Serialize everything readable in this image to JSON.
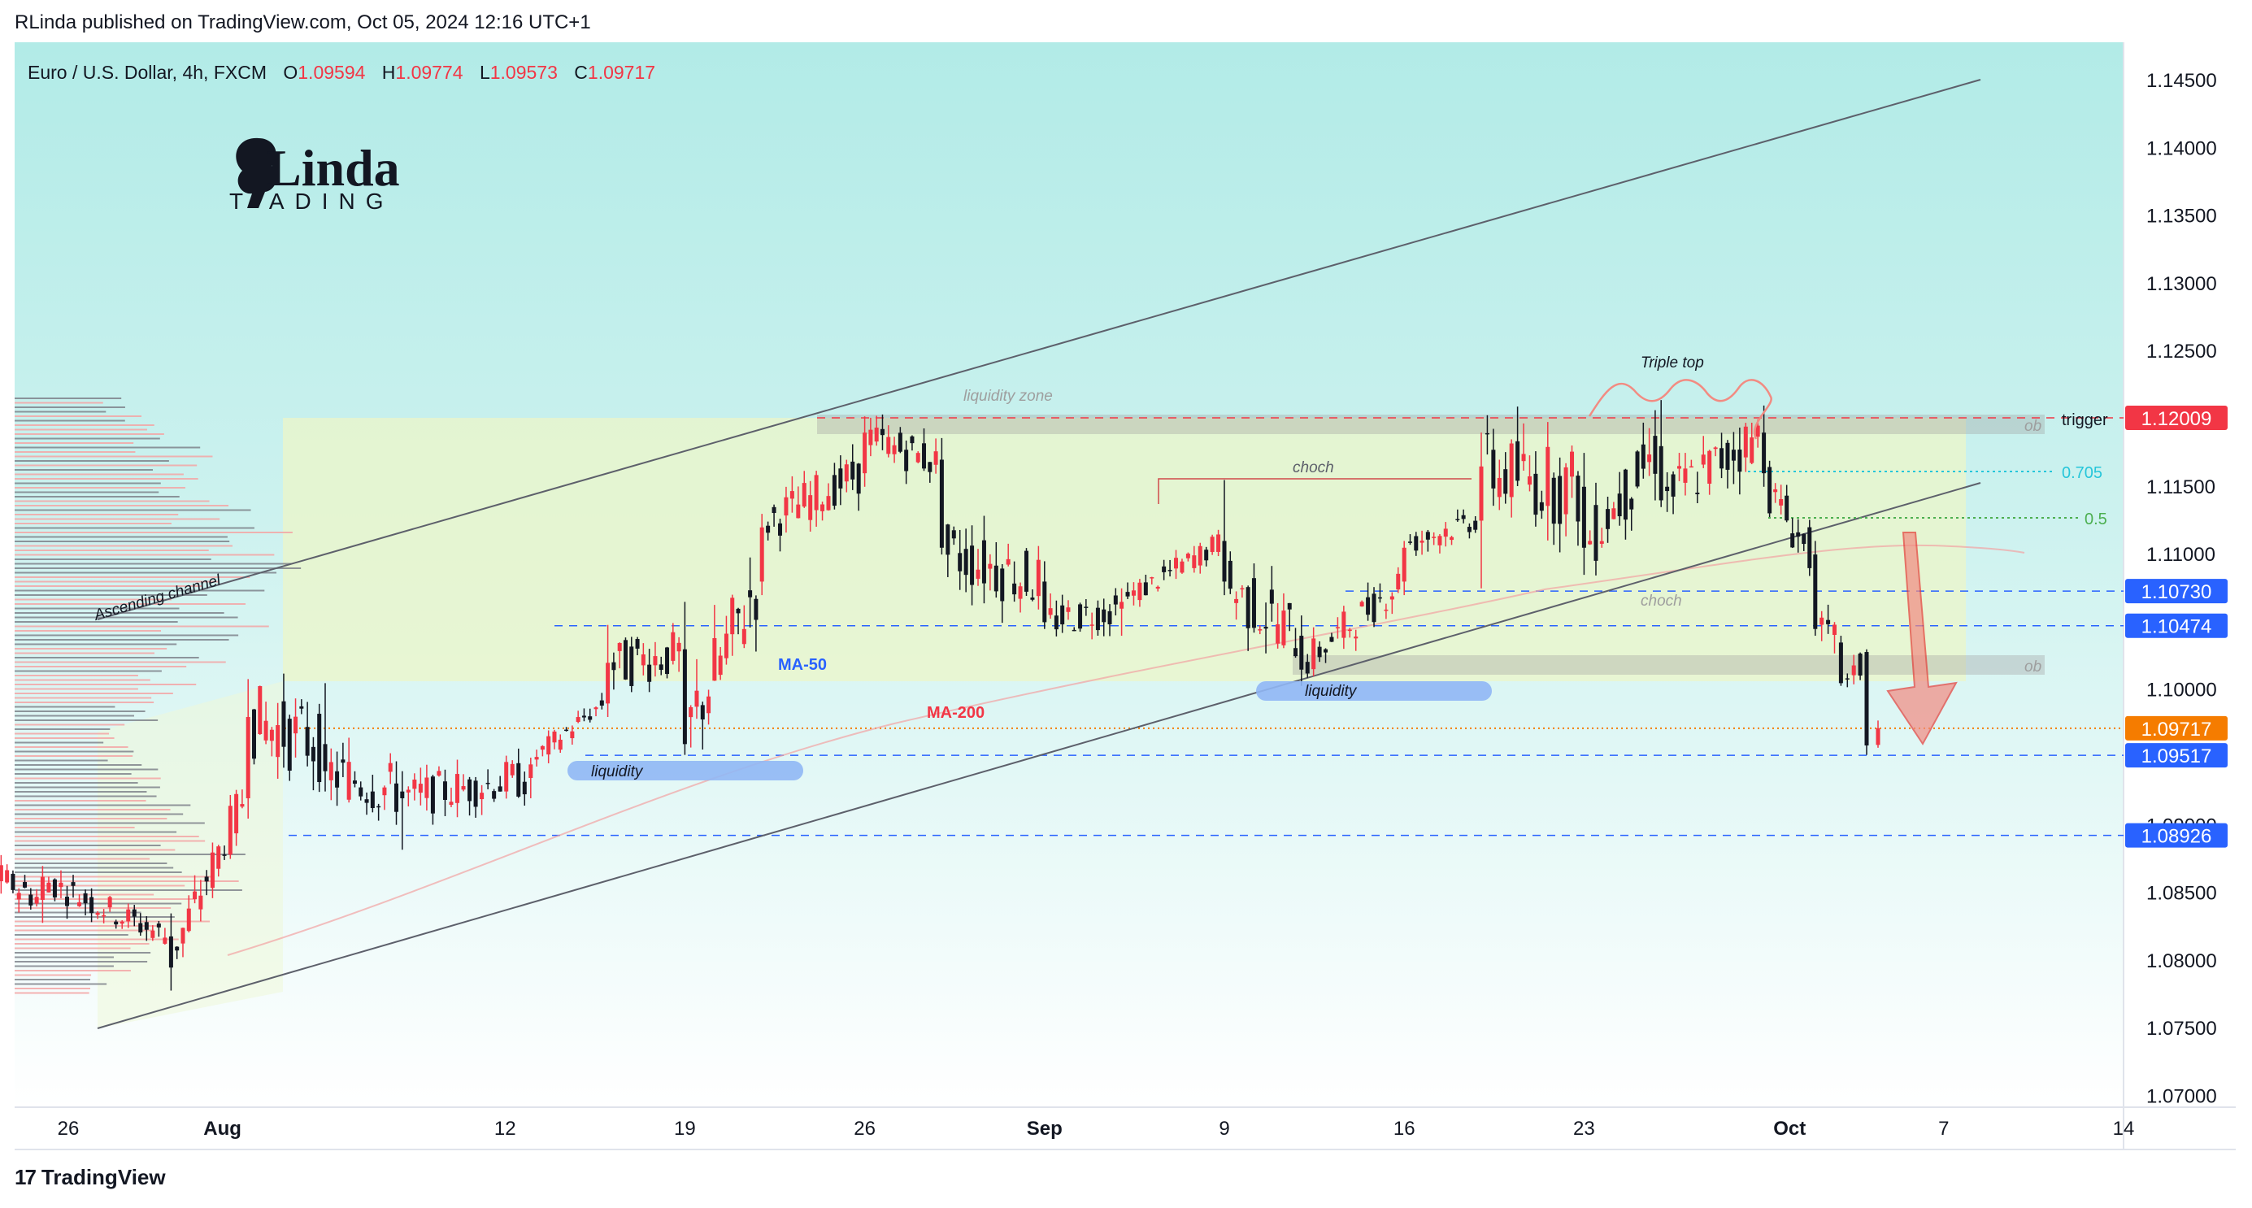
{
  "header": {
    "published": "RLinda published on TradingView.com, Oct 05, 2024 12:16 UTC+1"
  },
  "legend": {
    "symbol": "Euro / U.S. Dollar, 4h, FXCM",
    "o_label": "O",
    "o_value": "1.09594",
    "h_label": "H",
    "h_value": "1.09774",
    "l_label": "L",
    "l_value": "1.09573",
    "c_label": "C",
    "c_value": "1.09717"
  },
  "logo": {
    "line1": "RLinda",
    "line2": "TRADING"
  },
  "footer": {
    "brand": "TradingView"
  },
  "colors": {
    "up": "#f23645",
    "down": "#131722",
    "accent_blue": "#2962ff",
    "trigger": "#f23645",
    "last_price": "#f57c00",
    "level_blue": "#2962ff",
    "fib": "#26c6da",
    "ma50_text": "#2962ff",
    "ma200_text": "#f23645"
  },
  "annotations": {
    "liquidity_zone": "liquidity zone",
    "ascending_channel": "Ascending channel",
    "choch_top": "choch",
    "choch_bottom": "choch",
    "triple_top": "Triple top",
    "liquidity_left": "liquidity",
    "liquidity_right": "liquidity",
    "ma50": "MA-50",
    "ma200": "MA-200",
    "ob1": "ob",
    "ob2": "ob",
    "trigger": "trigger",
    "fib_705": "0.705",
    "fib_5": "0.5"
  },
  "price_labels": {
    "trigger": "1.12009",
    "l1": "1.10730",
    "l2": "1.10474",
    "last": "1.09717",
    "l3": "1.09517",
    "l4": "1.08926"
  },
  "chart_data": {
    "type": "candlestick",
    "symbol": "EURUSD",
    "timeframe": "4h",
    "y_ticks": [
      "1.14500",
      "1.14000",
      "1.13500",
      "1.13000",
      "1.12500",
      "1.12000",
      "1.11500",
      "1.11000",
      "1.10500",
      "1.10000",
      "1.09500",
      "1.09000",
      "1.08500",
      "1.08000",
      "1.07500",
      "1.07000"
    ],
    "x_ticks": [
      {
        "label": "26",
        "date": "2024-07-26",
        "bold": false
      },
      {
        "label": "Aug",
        "date": "2024-08-01",
        "bold": true
      },
      {
        "label": "12",
        "date": "2024-08-12",
        "bold": false
      },
      {
        "label": "19",
        "date": "2024-08-19",
        "bold": false
      },
      {
        "label": "26",
        "date": "2024-08-26",
        "bold": false
      },
      {
        "label": "Sep",
        "date": "2024-09-02",
        "bold": true
      },
      {
        "label": "9",
        "date": "2024-09-09",
        "bold": false
      },
      {
        "label": "16",
        "date": "2024-09-16",
        "bold": false
      },
      {
        "label": "23",
        "date": "2024-09-23",
        "bold": false
      },
      {
        "label": "Oct",
        "date": "2024-10-01",
        "bold": true
      },
      {
        "label": "7",
        "date": "2024-10-07",
        "bold": false
      },
      {
        "label": "14",
        "date": "2024-10-14",
        "bold": false
      }
    ],
    "y_range": [
      1.0695,
      1.1468
    ],
    "levels": [
      {
        "name": "trigger",
        "price": 1.12009,
        "style": "dashed-red"
      },
      {
        "name": "l1",
        "price": 1.1073,
        "style": "dashed-blue"
      },
      {
        "name": "l2",
        "price": 1.10474,
        "style": "dashed-blue"
      },
      {
        "name": "last",
        "price": 1.09717,
        "style": "dotted-orange"
      },
      {
        "name": "l3",
        "price": 1.09517,
        "style": "dashed-blue"
      },
      {
        "name": "l4",
        "price": 1.08926,
        "style": "dashed-blue"
      }
    ],
    "ohlc_anchor": [
      [
        "2024-07-22",
        1.0888,
        1.0902,
        1.0858,
        1.0875
      ],
      [
        "2024-07-25",
        1.0845,
        1.087,
        1.0828,
        1.0862
      ],
      [
        "2024-07-30",
        1.0818,
        1.0835,
        1.0778,
        1.0795
      ],
      [
        "2024-08-02",
        1.092,
        1.1008,
        1.0905,
        1.098
      ],
      [
        "2024-08-05",
        1.096,
        1.1005,
        1.0925,
        1.094
      ],
      [
        "2024-08-08",
        1.0925,
        1.094,
        1.0882,
        1.092
      ],
      [
        "2024-08-13",
        1.0935,
        1.095,
        1.092,
        1.0945
      ],
      [
        "2024-08-16",
        1.099,
        1.1048,
        1.098,
        1.102
      ],
      [
        "2024-08-19",
        1.103,
        1.1065,
        1.0952,
        1.096
      ],
      [
        "2024-08-22",
        1.108,
        1.113,
        1.107,
        1.112
      ],
      [
        "2024-08-26",
        1.116,
        1.1202,
        1.115,
        1.119
      ],
      [
        "2024-08-29",
        1.117,
        1.1186,
        1.11,
        1.1105
      ],
      [
        "2024-09-02",
        1.108,
        1.1095,
        1.1045,
        1.105
      ],
      [
        "2024-09-05",
        1.106,
        1.1075,
        1.104,
        1.1065
      ],
      [
        "2024-09-09",
        1.111,
        1.1155,
        1.107,
        1.108
      ],
      [
        "2024-09-12",
        1.104,
        1.1055,
        1.1003,
        1.1015
      ],
      [
        "2024-09-16",
        1.108,
        1.111,
        1.107,
        1.1105
      ],
      [
        "2024-09-19",
        1.1125,
        1.119,
        1.1075,
        1.1165
      ],
      [
        "2024-09-23",
        1.115,
        1.1175,
        1.1085,
        1.1105
      ],
      [
        "2024-09-26",
        1.118,
        1.1214,
        1.1135,
        1.114
      ],
      [
        "2024-09-30",
        1.119,
        1.121,
        1.115,
        1.116
      ],
      [
        "2024-10-02",
        1.11,
        1.111,
        1.104,
        1.1045
      ],
      [
        "2024-10-03",
        1.1035,
        1.104,
        1.1003,
        1.1005
      ],
      [
        "2024-10-04",
        1.1028,
        1.103,
        1.0952,
        1.0959
      ],
      [
        "2024-10-04",
        1.09594,
        1.09774,
        1.09573,
        1.09717
      ]
    ]
  }
}
